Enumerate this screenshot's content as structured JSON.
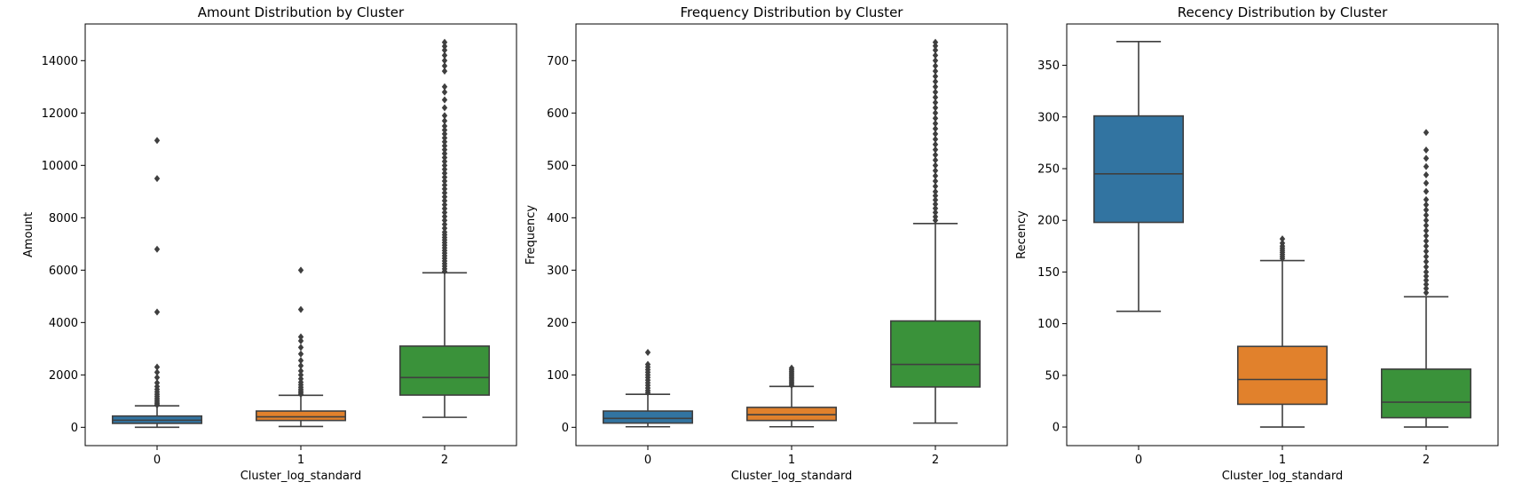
{
  "colors": {
    "series": [
      "#3274a1",
      "#e1812c",
      "#3a923a"
    ],
    "line": "#3f3f3f"
  },
  "chart_data": [
    {
      "type": "box",
      "title": "Amount Distribution by Cluster",
      "xlabel": "Cluster_log_standard",
      "ylabel": "Amount",
      "categories": [
        "0",
        "1",
        "2"
      ],
      "ylim": [
        -700,
        15400
      ],
      "yticks": [
        0,
        2000,
        4000,
        6000,
        8000,
        10000,
        12000,
        14000
      ],
      "boxes": [
        {
          "category": "0",
          "whislo": 0,
          "q1": 150,
          "median": 270,
          "q3": 430,
          "whishi": 820,
          "fliers": [
            850,
            900,
            960,
            1030,
            1100,
            1180,
            1260,
            1350,
            1450,
            1560,
            1700,
            1900,
            2100,
            2300,
            4400,
            6800,
            9500,
            10950
          ]
        },
        {
          "category": "1",
          "whislo": 30,
          "q1": 260,
          "median": 400,
          "q3": 620,
          "whishi": 1220,
          "fliers": [
            1260,
            1320,
            1380,
            1450,
            1530,
            1620,
            1720,
            1850,
            2000,
            2150,
            2350,
            2550,
            2800,
            3050,
            3300,
            3450,
            4500,
            6000
          ]
        },
        {
          "category": "2",
          "whislo": 380,
          "q1": 1230,
          "median": 1900,
          "q3": 3100,
          "whishi": 5900,
          "fliers": [
            5950,
            6050,
            6150,
            6250,
            6350,
            6450,
            6550,
            6650,
            6750,
            6850,
            6950,
            7050,
            7150,
            7250,
            7350,
            7450,
            7600,
            7750,
            7900,
            8050,
            8200,
            8350,
            8500,
            8650,
            8800,
            8950,
            9100,
            9250,
            9400,
            9550,
            9700,
            9850,
            10000,
            10150,
            10300,
            10450,
            10600,
            10750,
            10900,
            11050,
            11200,
            11350,
            11500,
            11700,
            11900,
            12200,
            12500,
            12800,
            13000,
            13600,
            13800,
            14000,
            14200,
            14400,
            14550,
            14700
          ]
        }
      ]
    },
    {
      "type": "box",
      "title": "Frequency Distribution by Cluster",
      "xlabel": "Cluster_log_standard",
      "ylabel": "Frequency",
      "categories": [
        "0",
        "1",
        "2"
      ],
      "ylim": [
        -35,
        770
      ],
      "yticks": [
        0,
        100,
        200,
        300,
        400,
        500,
        600,
        700
      ],
      "boxes": [
        {
          "category": "0",
          "whislo": 1,
          "q1": 8,
          "median": 17,
          "q3": 31,
          "whishi": 63,
          "fliers": [
            66,
            70,
            75,
            80,
            85,
            90,
            95,
            100,
            105,
            110,
            115,
            120,
            143
          ]
        },
        {
          "category": "1",
          "whislo": 1,
          "q1": 13,
          "median": 24,
          "q3": 38,
          "whishi": 78,
          "fliers": [
            80,
            83,
            86,
            89,
            92,
            95,
            98,
            101,
            104,
            107,
            110,
            113
          ]
        },
        {
          "category": "2",
          "whislo": 8,
          "q1": 77,
          "median": 120,
          "q3": 203,
          "whishi": 389,
          "fliers": [
            395,
            402,
            410,
            418,
            426,
            434,
            442,
            450,
            460,
            470,
            480,
            490,
            500,
            510,
            520,
            530,
            540,
            550,
            560,
            570,
            580,
            590,
            600,
            610,
            620,
            630,
            640,
            650,
            660,
            670,
            680,
            690,
            700,
            710,
            720,
            728,
            735
          ]
        }
      ]
    },
    {
      "type": "box",
      "title": "Recency Distribution by Cluster",
      "xlabel": "Cluster_log_standard",
      "ylabel": "Recency",
      "categories": [
        "0",
        "1",
        "2"
      ],
      "ylim": [
        -18,
        390
      ],
      "yticks": [
        0,
        50,
        100,
        150,
        200,
        250,
        300,
        350
      ],
      "boxes": [
        {
          "category": "0",
          "whislo": 112,
          "q1": 198,
          "median": 245,
          "q3": 301,
          "whishi": 373,
          "fliers": []
        },
        {
          "category": "1",
          "whislo": 0,
          "q1": 22,
          "median": 46,
          "q3": 78,
          "whishi": 161,
          "fliers": [
            163,
            165,
            167,
            169,
            171,
            173,
            175,
            178,
            182
          ]
        },
        {
          "category": "2",
          "whislo": 0,
          "q1": 9,
          "median": 24,
          "q3": 56,
          "whishi": 126,
          "fliers": [
            130,
            134,
            138,
            142,
            146,
            150,
            155,
            160,
            165,
            170,
            175,
            180,
            185,
            190,
            195,
            200,
            205,
            210,
            215,
            220,
            228,
            236,
            244,
            252,
            260,
            268,
            285
          ]
        }
      ]
    }
  ]
}
